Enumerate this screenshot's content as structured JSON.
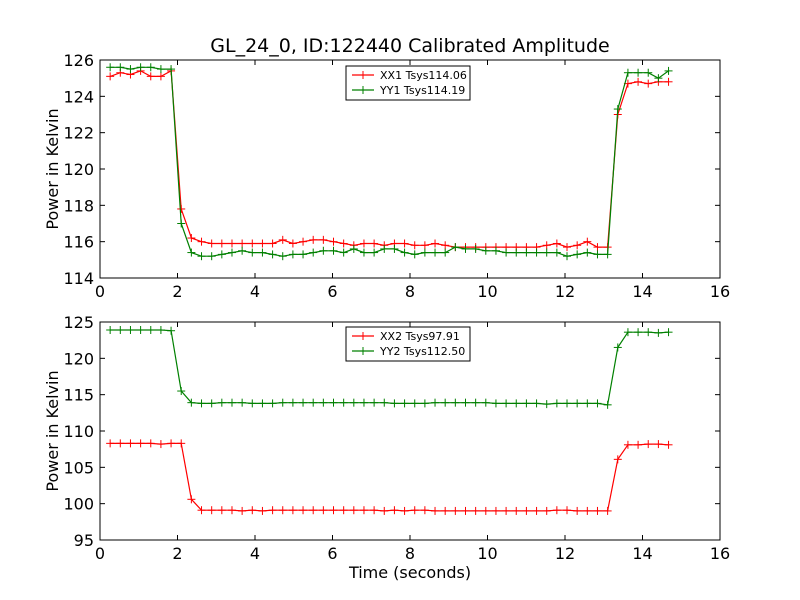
{
  "title": "GL_24_0, ID:122440 Calibrated Amplitude",
  "xlabel": "Time (seconds)",
  "colors": {
    "red": "#ff0000",
    "green": "#008000"
  },
  "chart_data": [
    {
      "type": "line",
      "ylabel": "Power in Kelvin",
      "xlim": [
        0,
        16
      ],
      "ylim": [
        114,
        126
      ],
      "xticks": [
        "0",
        "2",
        "4",
        "6",
        "8",
        "10",
        "12",
        "14",
        "16"
      ],
      "yticks": [
        "114",
        "116",
        "118",
        "120",
        "122",
        "124",
        "126"
      ],
      "legend_position": "upper-center",
      "x": [
        0.262,
        0.524,
        0.786,
        1.048,
        1.31,
        1.572,
        1.834,
        2.096,
        2.358,
        2.62,
        2.882,
        3.144,
        3.406,
        3.668,
        3.93,
        4.192,
        4.454,
        4.716,
        4.978,
        5.24,
        5.502,
        5.764,
        6.026,
        6.288,
        6.55,
        6.812,
        7.074,
        7.336,
        7.598,
        7.86,
        8.122,
        8.384,
        8.646,
        8.908,
        9.17,
        9.432,
        9.694,
        9.956,
        10.218,
        10.48,
        10.742,
        11.004,
        11.266,
        11.528,
        11.79,
        12.052,
        12.314,
        12.576,
        12.838,
        13.1,
        13.362,
        13.624,
        13.886,
        14.148,
        14.41,
        14.672
      ],
      "series": [
        {
          "name": "XX1 Tsys114.06",
          "color": "#ff0000",
          "values": [
            125.1,
            125.3,
            125.2,
            125.4,
            125.1,
            125.1,
            125.4,
            117.8,
            116.2,
            116.0,
            115.9,
            115.9,
            115.9,
            115.9,
            115.9,
            115.9,
            115.9,
            116.1,
            115.9,
            116.0,
            116.1,
            116.1,
            116.0,
            115.9,
            115.8,
            115.9,
            115.9,
            115.8,
            115.9,
            115.9,
            115.8,
            115.8,
            115.9,
            115.8,
            115.7,
            115.7,
            115.7,
            115.7,
            115.7,
            115.7,
            115.7,
            115.7,
            115.7,
            115.8,
            115.9,
            115.7,
            115.8,
            116.0,
            115.7,
            115.7,
            123.0,
            124.7,
            124.8,
            124.7,
            124.8,
            124.8
          ]
        },
        {
          "name": "YY1 Tsys114.19",
          "color": "#008000",
          "values": [
            125.6,
            125.6,
            125.5,
            125.6,
            125.6,
            125.5,
            125.5,
            117.0,
            115.4,
            115.2,
            115.2,
            115.3,
            115.4,
            115.5,
            115.4,
            115.4,
            115.3,
            115.2,
            115.3,
            115.3,
            115.4,
            115.5,
            115.5,
            115.4,
            115.6,
            115.4,
            115.4,
            115.6,
            115.6,
            115.4,
            115.3,
            115.4,
            115.4,
            115.4,
            115.7,
            115.6,
            115.6,
            115.5,
            115.5,
            115.4,
            115.4,
            115.4,
            115.4,
            115.4,
            115.4,
            115.2,
            115.3,
            115.4,
            115.3,
            115.3,
            123.3,
            125.3,
            125.3,
            125.3,
            125.0,
            125.4
          ]
        }
      ]
    },
    {
      "type": "line",
      "ylabel": "Power in Kelvin",
      "xlim": [
        0,
        16
      ],
      "ylim": [
        95,
        125
      ],
      "xticks": [
        "0",
        "2",
        "4",
        "6",
        "8",
        "10",
        "12",
        "14",
        "16"
      ],
      "yticks": [
        "95",
        "100",
        "105",
        "110",
        "115",
        "120",
        "125"
      ],
      "legend_position": "upper-center",
      "x": [
        0.262,
        0.524,
        0.786,
        1.048,
        1.31,
        1.572,
        1.834,
        2.096,
        2.358,
        2.62,
        2.882,
        3.144,
        3.406,
        3.668,
        3.93,
        4.192,
        4.454,
        4.716,
        4.978,
        5.24,
        5.502,
        5.764,
        6.026,
        6.288,
        6.55,
        6.812,
        7.074,
        7.336,
        7.598,
        7.86,
        8.122,
        8.384,
        8.646,
        8.908,
        9.17,
        9.432,
        9.694,
        9.956,
        10.218,
        10.48,
        10.742,
        11.004,
        11.266,
        11.528,
        11.79,
        12.052,
        12.314,
        12.576,
        12.838,
        13.1,
        13.362,
        13.624,
        13.886,
        14.148,
        14.41,
        14.672
      ],
      "series": [
        {
          "name": "XX2 Tsys97.91",
          "color": "#ff0000",
          "values": [
            108.3,
            108.3,
            108.3,
            108.3,
            108.3,
            108.2,
            108.3,
            108.3,
            100.6,
            99.1,
            99.1,
            99.1,
            99.1,
            99.0,
            99.1,
            99.0,
            99.1,
            99.1,
            99.1,
            99.1,
            99.1,
            99.1,
            99.1,
            99.1,
            99.1,
            99.1,
            99.1,
            99.0,
            99.1,
            99.0,
            99.1,
            99.1,
            99.0,
            99.0,
            99.0,
            99.0,
            99.0,
            99.0,
            99.0,
            99.0,
            99.0,
            99.0,
            99.0,
            99.0,
            99.1,
            99.1,
            99.0,
            99.0,
            99.0,
            99.0,
            106.1,
            108.1,
            108.1,
            108.2,
            108.2,
            108.1
          ],
          "values_note": ""
        },
        {
          "name": "YY2 Tsys112.50",
          "color": "#008000",
          "values": [
            123.9,
            123.9,
            123.9,
            123.9,
            123.9,
            123.9,
            123.8,
            115.5,
            113.9,
            113.8,
            113.8,
            113.9,
            113.9,
            113.9,
            113.8,
            113.8,
            113.8,
            113.9,
            113.9,
            113.9,
            113.9,
            113.9,
            113.9,
            113.9,
            113.9,
            113.9,
            113.9,
            113.9,
            113.8,
            113.8,
            113.8,
            113.8,
            113.9,
            113.9,
            113.9,
            113.9,
            113.9,
            113.9,
            113.8,
            113.8,
            113.8,
            113.8,
            113.8,
            113.7,
            113.8,
            113.8,
            113.8,
            113.8,
            113.8,
            113.6,
            121.5,
            123.6,
            123.6,
            123.6,
            123.5,
            123.6
          ]
        }
      ]
    }
  ]
}
